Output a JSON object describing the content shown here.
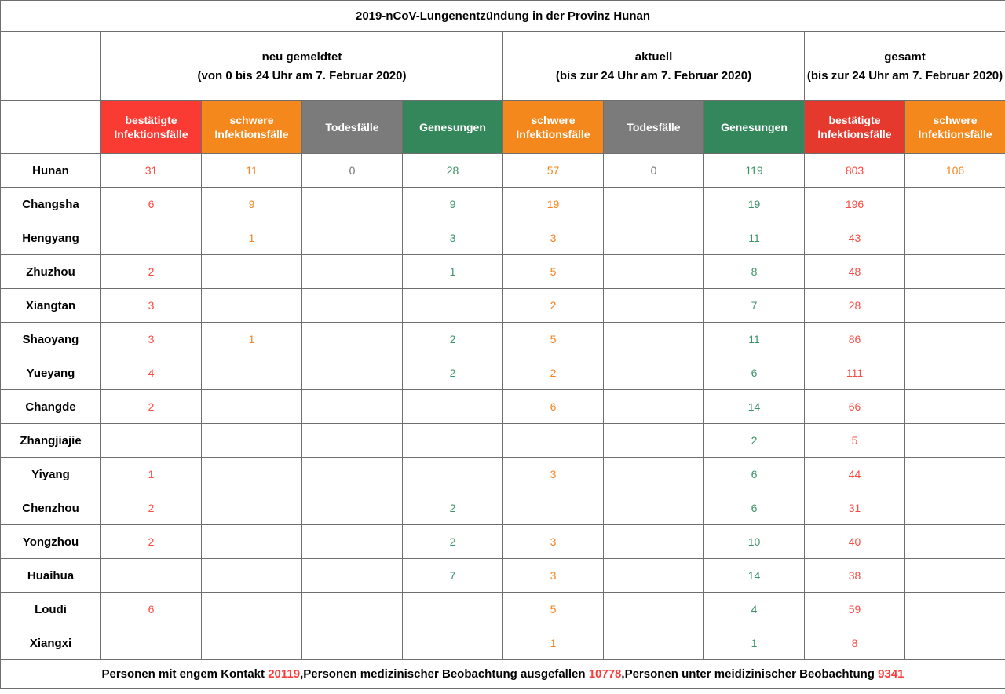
{
  "title": "2019-nCoV-Lungenentzündung in der Provinz Hunan",
  "groups": [
    {
      "line1": "neu gemeldtet",
      "line2": "(von 0 bis 24 Uhr am 7. Februar 2020)",
      "span": 4
    },
    {
      "line1": "aktuell",
      "line2": "(bis zur 24 Uhr am 7. Februar 2020)",
      "span": 3
    },
    {
      "line1": "gesamt",
      "line2": "(bis zur 24 Uhr am 7. Februar 2020)",
      "span": 2
    }
  ],
  "columns": [
    {
      "label": "bestätigte Infektionsfälle",
      "type": "confirmed",
      "header_bg": "#fa3b33"
    },
    {
      "label": "schwere Infektionsfälle",
      "type": "severe",
      "header_bg": "#f5881d"
    },
    {
      "label": "Todesfälle",
      "type": "deaths",
      "header_bg": "#7b7b7b"
    },
    {
      "label": "Genesungen",
      "type": "recovered",
      "header_bg": "#33875a"
    },
    {
      "label": "schwere Infektionsfälle",
      "type": "severe",
      "header_bg": "#f5881d"
    },
    {
      "label": "Todesfälle",
      "type": "deaths",
      "header_bg": "#7b7b7b"
    },
    {
      "label": "Genesungen",
      "type": "recovered",
      "header_bg": "#33875a"
    },
    {
      "label": "bestätigte Infektionsfälle",
      "type": "confirmed",
      "header_bg": "#e5392e"
    },
    {
      "label": "schwere Infektionsfälle",
      "type": "severe",
      "header_bg": "#f5881d"
    }
  ],
  "value_colors": {
    "confirmed": "#fb4a42",
    "severe": "#f5821e",
    "deaths": "#6f757b",
    "recovered": "#3d9368"
  },
  "rows": [
    {
      "region": "Hunan",
      "values": [
        "31",
        "11",
        "0",
        "28",
        "57",
        "0",
        "119",
        "803",
        "106"
      ]
    },
    {
      "region": "Changsha",
      "values": [
        "6",
        "9",
        "",
        "9",
        "19",
        "",
        "19",
        "196",
        ""
      ]
    },
    {
      "region": "Hengyang",
      "values": [
        "",
        "1",
        "",
        "3",
        "3",
        "",
        "11",
        "43",
        ""
      ]
    },
    {
      "region": "Zhuzhou",
      "values": [
        "2",
        "",
        "",
        "1",
        "5",
        "",
        "8",
        "48",
        ""
      ]
    },
    {
      "region": "Xiangtan",
      "values": [
        "3",
        "",
        "",
        "",
        "2",
        "",
        "7",
        "28",
        ""
      ]
    },
    {
      "region": "Shaoyang",
      "values": [
        "3",
        "1",
        "",
        "2",
        "5",
        "",
        "11",
        "86",
        ""
      ]
    },
    {
      "region": "Yueyang",
      "values": [
        "4",
        "",
        "",
        "2",
        "2",
        "",
        "6",
        "111",
        ""
      ]
    },
    {
      "region": "Changde",
      "values": [
        "2",
        "",
        "",
        "",
        "6",
        "",
        "14",
        "66",
        ""
      ]
    },
    {
      "region": "Zhangjiajie",
      "values": [
        "",
        "",
        "",
        "",
        "",
        "",
        "2",
        "5",
        ""
      ]
    },
    {
      "region": "Yiyang",
      "values": [
        "1",
        "",
        "",
        "",
        "3",
        "",
        "6",
        "44",
        ""
      ]
    },
    {
      "region": "Chenzhou",
      "values": [
        "2",
        "",
        "",
        "2",
        "",
        "",
        "6",
        "31",
        ""
      ]
    },
    {
      "region": "Yongzhou",
      "values": [
        "2",
        "",
        "",
        "2",
        "3",
        "",
        "10",
        "40",
        ""
      ]
    },
    {
      "region": "Huaihua",
      "values": [
        "",
        "",
        "",
        "7",
        "3",
        "",
        "14",
        "38",
        ""
      ]
    },
    {
      "region": "Loudi",
      "values": [
        "6",
        "",
        "",
        "",
        "5",
        "",
        "4",
        "59",
        ""
      ]
    },
    {
      "region": "Xiangxi",
      "values": [
        "",
        "",
        "",
        "",
        "1",
        "",
        "1",
        "8",
        ""
      ]
    }
  ],
  "footer": {
    "segments": [
      {
        "text": "Personen mit engem Kontakt ",
        "highlight": false
      },
      {
        "text": "20119",
        "highlight": true
      },
      {
        "text": ",Personen medizinischer Beobachtung ausgefallen ",
        "highlight": false
      },
      {
        "text": "10778",
        "highlight": true
      },
      {
        "text": ",Personen unter meidizinischer Beobachtung ",
        "highlight": false
      },
      {
        "text": "9341",
        "highlight": true
      }
    ],
    "highlight_color": "#fb3c38"
  }
}
